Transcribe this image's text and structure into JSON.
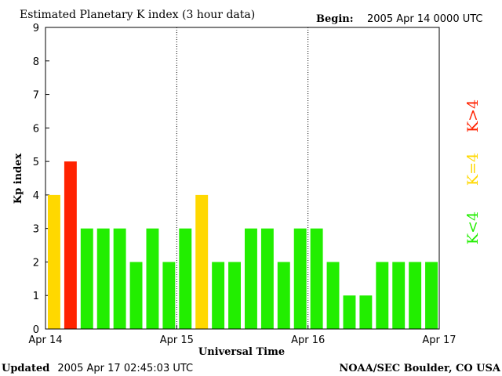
{
  "header": {
    "title": "Estimated Planetary K index (3 hour data)",
    "begin_label": "Begin:",
    "begin_value": "2005 Apr 14 0000 UTC"
  },
  "footer": {
    "updated_label": "Updated",
    "updated_value": "2005 Apr 17 02:45:03 UTC",
    "source": "NOAA/SEC Boulder, CO USA"
  },
  "legend": {
    "items": [
      {
        "label": "K<4",
        "color": "#22ee00"
      },
      {
        "label": "K=4",
        "color": "#ffd800"
      },
      {
        "label": "K>4",
        "color": "#ff2200"
      }
    ]
  },
  "chart_data": {
    "type": "bar",
    "title": "Estimated Planetary K index (3 hour data)",
    "xlabel": "Universal Time",
    "ylabel": "Kp index",
    "ylim": [
      0,
      9
    ],
    "yticks": [
      0,
      1,
      2,
      3,
      4,
      5,
      6,
      7,
      8,
      9
    ],
    "xticks": [
      "Apr 14",
      "Apr 15",
      "Apr 16",
      "Apr 17"
    ],
    "day_dividers": [
      "Apr 15",
      "Apr 16"
    ],
    "bars_per_day": 8,
    "values": [
      4,
      5,
      3,
      3,
      3,
      2,
      3,
      2,
      3,
      4,
      2,
      2,
      3,
      3,
      2,
      3,
      3,
      2,
      1,
      1,
      2,
      2,
      2,
      2
    ],
    "colors": {
      "below4": "#22ee00",
      "equal4": "#ffd800",
      "above4": "#ff2200"
    },
    "grid": false
  }
}
